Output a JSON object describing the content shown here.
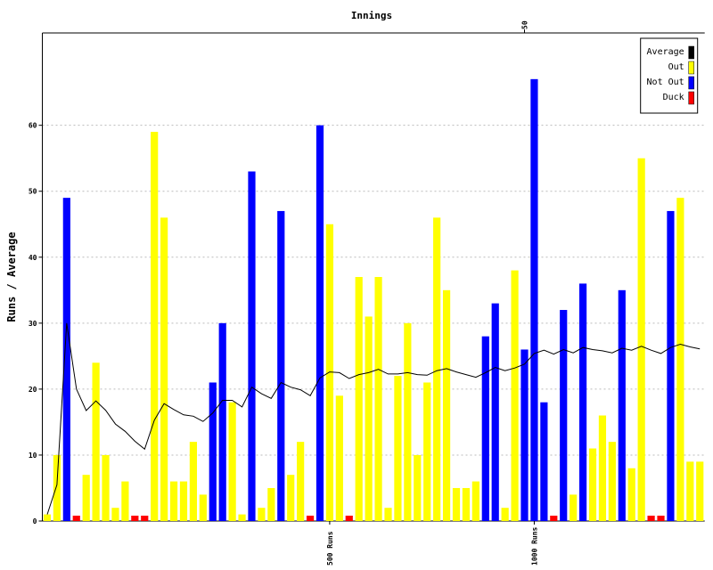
{
  "chart_data": {
    "type": "bar",
    "title": "Innings",
    "ylabel": "Runs / Average",
    "x": [
      1,
      2,
      3,
      4,
      5,
      6,
      7,
      8,
      9,
      10,
      11,
      12,
      13,
      14,
      15,
      16,
      17,
      18,
      19,
      20,
      21,
      22,
      23,
      24,
      25,
      26,
      27,
      28,
      29,
      30,
      31,
      32,
      33,
      34,
      35,
      36,
      37,
      38,
      39,
      40,
      41,
      42,
      43,
      44,
      45,
      46,
      47,
      48,
      49,
      50,
      51,
      52,
      53,
      54,
      55,
      56,
      57,
      58,
      59,
      60,
      61,
      62,
      63,
      64,
      65,
      66,
      67,
      68
    ],
    "xlim": [
      0.5,
      68.5
    ],
    "xticks": [
      50
    ],
    "run_ticks": [
      {
        "value": 500,
        "label": "500 Runs"
      },
      {
        "value": 1000,
        "label": "1000 Runs"
      }
    ],
    "ylim": [
      0,
      74
    ],
    "yticks": [
      0,
      10,
      20,
      30,
      40,
      50,
      60
    ],
    "grid": true,
    "legend": "top-right",
    "series": [
      {
        "name": "Average",
        "type": "line",
        "color": "#000000",
        "values": [
          1,
          5.5,
          30,
          20,
          16.75,
          18.2,
          16.8,
          14.7,
          13.6,
          12.1,
          10.9,
          15.3,
          17.8,
          16.9,
          16.1,
          15.9,
          15.1,
          16.4,
          18.3,
          18.3,
          17.3,
          20.3,
          19.3,
          18.6,
          21,
          20.3,
          19.9,
          19,
          21.7,
          22.6,
          22.5,
          21.6,
          22.2,
          22.5,
          23,
          22.3,
          22.3,
          22.5,
          22.2,
          22.1,
          22.8,
          23.1,
          22.6,
          22.2,
          21.8,
          22.5,
          23.3,
          22.8,
          23.2,
          23.8,
          25.4,
          25.9,
          25.3,
          26,
          25.5,
          26.3,
          26,
          25.8,
          25.5,
          26.2,
          25.9,
          26.5,
          25.9,
          25.4,
          26.3,
          26.8,
          26.4,
          26.1
        ]
      },
      {
        "name": "Out",
        "type": "bar",
        "color": "#ffff00",
        "values": [
          1,
          10,
          null,
          null,
          7,
          24,
          10,
          2,
          6,
          null,
          null,
          59,
          46,
          6,
          6,
          12,
          4,
          null,
          null,
          18,
          1,
          null,
          2,
          5,
          null,
          7,
          12,
          null,
          null,
          45,
          19,
          null,
          37,
          31,
          37,
          2,
          22,
          30,
          10,
          21,
          46,
          35,
          5,
          5,
          6,
          null,
          null,
          2,
          38,
          null,
          null,
          null,
          null,
          null,
          4,
          null,
          11,
          16,
          12,
          null,
          8,
          55,
          null,
          null,
          null,
          49,
          9,
          9
        ]
      },
      {
        "name": "Not Out",
        "type": "bar",
        "color": "#0000ff",
        "values": [
          null,
          null,
          49,
          null,
          null,
          null,
          null,
          null,
          null,
          null,
          null,
          null,
          null,
          null,
          null,
          null,
          null,
          21,
          30,
          null,
          null,
          53,
          null,
          null,
          47,
          null,
          null,
          null,
          60,
          null,
          null,
          null,
          null,
          null,
          null,
          null,
          null,
          null,
          null,
          null,
          null,
          null,
          null,
          null,
          null,
          28,
          33,
          null,
          null,
          26,
          67,
          18,
          null,
          32,
          null,
          36,
          null,
          null,
          null,
          35,
          null,
          null,
          null,
          null,
          47,
          null,
          null,
          null
        ]
      },
      {
        "name": "Duck",
        "type": "bar",
        "color": "#ff0000",
        "values": [
          null,
          null,
          null,
          0,
          null,
          null,
          null,
          null,
          null,
          0,
          0,
          null,
          null,
          null,
          null,
          null,
          null,
          null,
          null,
          null,
          null,
          null,
          null,
          null,
          null,
          null,
          null,
          0,
          null,
          null,
          null,
          0,
          null,
          null,
          null,
          null,
          null,
          null,
          null,
          null,
          null,
          null,
          null,
          null,
          null,
          null,
          null,
          null,
          null,
          null,
          null,
          null,
          0,
          null,
          null,
          null,
          null,
          null,
          null,
          null,
          null,
          null,
          0,
          0,
          null,
          null,
          null,
          null
        ]
      }
    ]
  }
}
